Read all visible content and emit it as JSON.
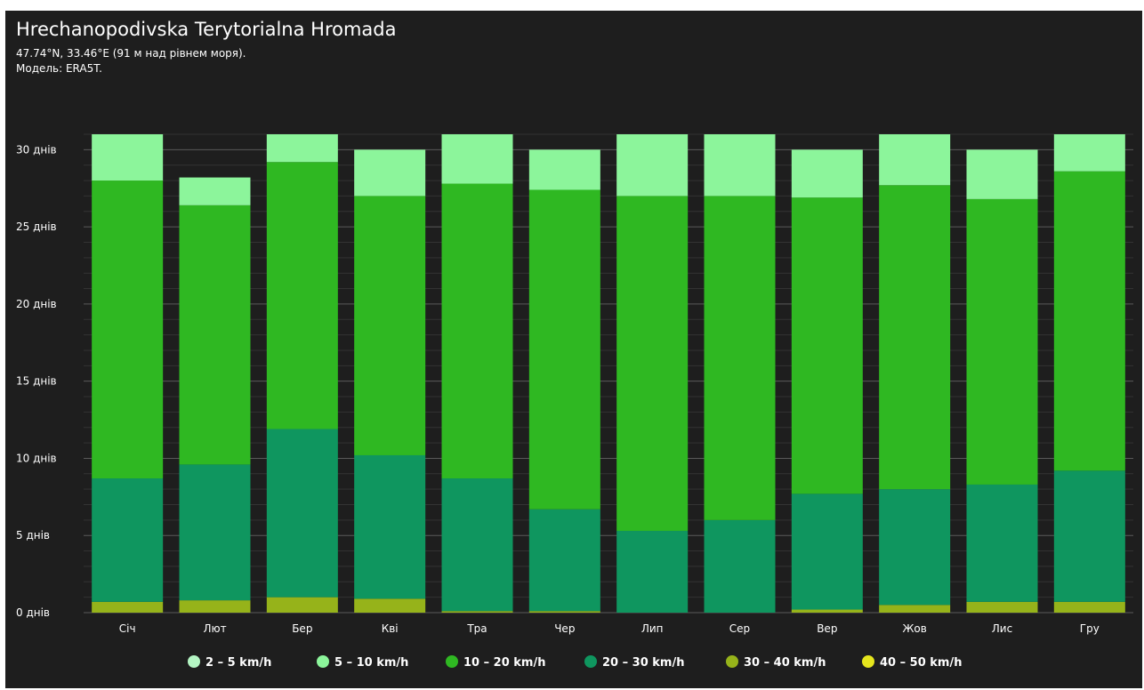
{
  "header": {
    "title": "Hrechanopodivska Terytorialna Hromada",
    "subtitle": "47.74°N, 33.46°E (91 м над рівнем моря).",
    "model": "Модель: ERA5T."
  },
  "colors": {
    "background": "#1e1e1e",
    "grid": "#4a4a4a"
  },
  "chart_data": {
    "type": "bar",
    "stacked": true,
    "categories": [
      "Січ",
      "Лют",
      "Бер",
      "Кві",
      "Тра",
      "Чер",
      "Лип",
      "Сер",
      "Вер",
      "Жов",
      "Лис",
      "Гру"
    ],
    "y_ticks": [
      {
        "value": 0,
        "label": "0 днів"
      },
      {
        "value": 5,
        "label": "5 днів"
      },
      {
        "value": 10,
        "label": "10 днів"
      },
      {
        "value": 15,
        "label": "15 днів"
      },
      {
        "value": 20,
        "label": "20 днів"
      },
      {
        "value": 25,
        "label": "25 днів"
      },
      {
        "value": 30,
        "label": "30 днів"
      }
    ],
    "ylim": [
      0,
      31
    ],
    "grid": true,
    "legend_position": "bottom",
    "series": [
      {
        "name": "40 – 50 km/h",
        "color": "#e5e51d",
        "values": [
          0,
          0,
          0,
          0,
          0,
          0,
          0,
          0,
          0,
          0,
          0,
          0
        ]
      },
      {
        "name": "30 – 40 km/h",
        "color": "#96b31a",
        "values": [
          0.7,
          0.8,
          1.0,
          0.9,
          0.1,
          0.1,
          0,
          0,
          0.2,
          0.5,
          0.7,
          0.7
        ]
      },
      {
        "name": "20 – 30 km/h",
        "color": "#0f965f",
        "values": [
          8.0,
          8.8,
          10.9,
          9.3,
          8.6,
          6.6,
          5.3,
          6.0,
          7.5,
          7.5,
          7.6,
          8.5
        ]
      },
      {
        "name": "10 – 20 km/h",
        "color": "#2fb822",
        "values": [
          19.3,
          16.8,
          17.3,
          16.8,
          19.1,
          20.7,
          21.7,
          21.0,
          19.2,
          19.7,
          18.5,
          19.4
        ]
      },
      {
        "name": "5 – 10 km/h",
        "color": "#8cf59b",
        "values": [
          3.0,
          1.8,
          1.8,
          3.0,
          3.2,
          2.6,
          4.0,
          4.0,
          3.1,
          3.3,
          3.2,
          2.4
        ]
      },
      {
        "name": "2 – 5 km/h",
        "color": "#b4f5c3",
        "values": [
          0,
          0,
          0,
          0,
          0,
          0,
          0,
          0,
          0,
          0,
          0,
          0
        ]
      }
    ],
    "legend_order": [
      "2 – 5 km/h",
      "5 – 10 km/h",
      "10 – 20 km/h",
      "20 – 30 km/h",
      "30 – 40 km/h",
      "40 – 50 km/h"
    ]
  }
}
